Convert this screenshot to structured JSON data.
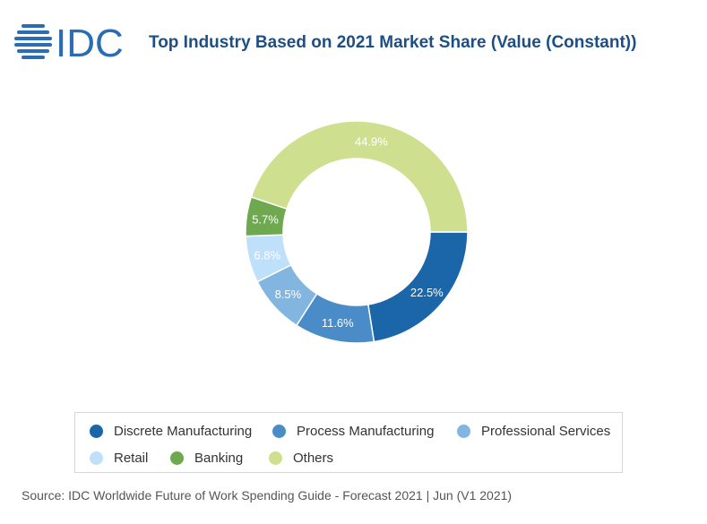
{
  "brand": {
    "logo_text": "IDC",
    "logo_color": "#2a6db4"
  },
  "header": {
    "title": "Top Industry Based on 2021 Market Share (Value (Constant))"
  },
  "chart_data": {
    "type": "pie",
    "donut": true,
    "categories": [
      "Discrete Manufacturing",
      "Process Manufacturing",
      "Professional Services",
      "Retail",
      "Banking",
      "Others"
    ],
    "values": [
      22.5,
      11.6,
      8.5,
      6.8,
      5.7,
      44.9
    ],
    "data_labels": [
      "22.5%",
      "11.6%",
      "8.5%",
      "6.8%",
      "5.7%",
      "44.9%"
    ],
    "colors": [
      "#1a66a8",
      "#4a8cc7",
      "#82b6e0",
      "#bfe0fb",
      "#6ea84f",
      "#cee08f"
    ],
    "legend_position": "bottom"
  },
  "footer": {
    "source": "Source: IDC Worldwide Future of Work Spending Guide - Forecast 2021 | Jun (V1 2021)"
  }
}
